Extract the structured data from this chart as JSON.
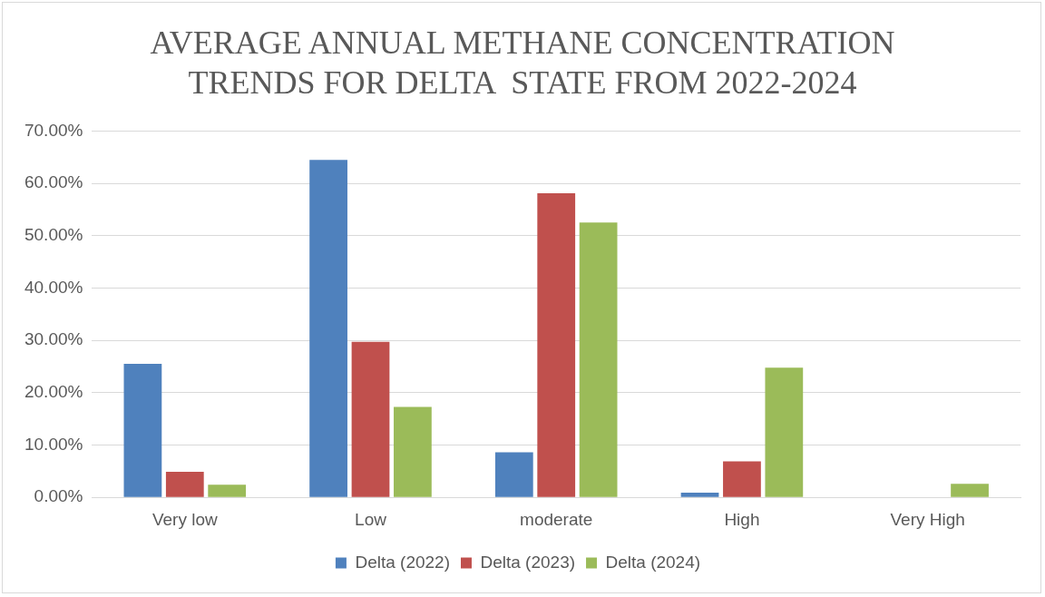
{
  "chart_data": {
    "type": "bar",
    "title": "AVERAGE ANNUAL METHANE CONCENTRATION TRENDS FOR DELTA  STATE FROM 2022-2024",
    "categories": [
      "Very low",
      "Low",
      "moderate",
      "High",
      "Very High"
    ],
    "series": [
      {
        "name": "Delta (2022)",
        "color": "#4f81bd",
        "values": [
          25.5,
          64.5,
          8.6,
          0.9,
          0
        ]
      },
      {
        "name": "Delta (2023)",
        "color": "#c0504d",
        "values": [
          4.9,
          29.7,
          58.1,
          6.9,
          0
        ]
      },
      {
        "name": "Delta (2024)",
        "color": "#9bbb59",
        "values": [
          2.4,
          17.3,
          52.5,
          24.8,
          2.6
        ]
      }
    ],
    "ylim": [
      0,
      70
    ],
    "yticks": [
      {
        "value": 0,
        "label": "0.00%"
      },
      {
        "value": 10,
        "label": "10.00%"
      },
      {
        "value": 20,
        "label": "20.00%"
      },
      {
        "value": 30,
        "label": "30.00%"
      },
      {
        "value": 40,
        "label": "40.00%"
      },
      {
        "value": 50,
        "label": "50.00%"
      },
      {
        "value": 60,
        "label": "60.00%"
      },
      {
        "value": 70,
        "label": "70.00%"
      }
    ],
    "grid": "y",
    "legend": "bottom"
  }
}
